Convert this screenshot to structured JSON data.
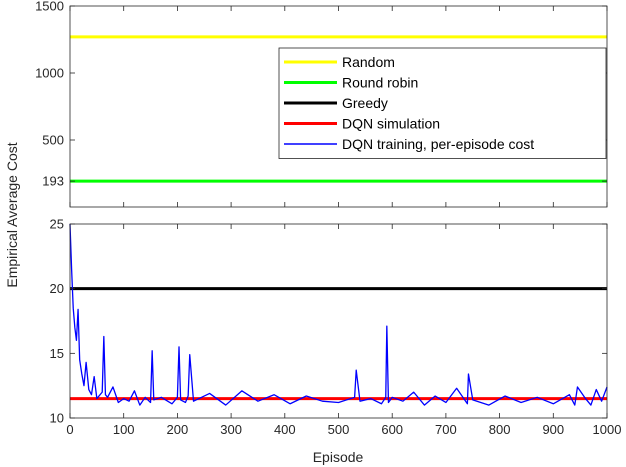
{
  "chart_data": {
    "type": "line",
    "xlabel": "Episode",
    "ylabel": "Empirical Average Cost",
    "shared_x": {
      "range": [
        0,
        1000
      ],
      "ticks": [
        0,
        100,
        200,
        300,
        400,
        500,
        600,
        700,
        800,
        900,
        1000
      ]
    },
    "panels": [
      {
        "id": "top",
        "ylim": [
          0,
          1500
        ],
        "yticks": [
          193,
          500,
          1000,
          1500
        ],
        "grid": false,
        "legend_position": "right",
        "series": [
          {
            "name": "Random",
            "color": "#ffff00",
            "y": 1270
          },
          {
            "name": "Round robin",
            "color": "#00ff00",
            "y": 193
          }
        ]
      },
      {
        "id": "bottom",
        "ylim": [
          10,
          25
        ],
        "yticks": [
          10,
          15,
          20,
          25
        ],
        "grid": false,
        "series": [
          {
            "name": "Greedy",
            "color": "#000000",
            "y": 20
          },
          {
            "name": "DQN simulation",
            "color": "#ff0000",
            "y": 11.5
          },
          {
            "name": "DQN training, per-episode cost",
            "color": "#0000ff",
            "x": [
              0,
              3,
              6,
              9,
              12,
              15,
              18,
              22,
              26,
              30,
              35,
              40,
              45,
              50,
              60,
              63,
              66,
              70,
              80,
              90,
              100,
              110,
              120,
              130,
              140,
              150,
              153,
              156,
              170,
              190,
              200,
              203,
              206,
              215,
              220,
              223,
              230,
              260,
              290,
              320,
              350,
              380,
              410,
              440,
              470,
              500,
              530,
              533,
              540,
              560,
              580,
              588,
              590,
              593,
              600,
              620,
              640,
              660,
              680,
              700,
              720,
              740,
              742,
              750,
              780,
              810,
              840,
              870,
              900,
              930,
              940,
              945,
              960,
              970,
              980,
              990,
              1000
            ],
            "y": [
              25,
              21.5,
              18.5,
              17,
              16,
              18.4,
              14.5,
              13.4,
              12.5,
              14.3,
              12.2,
              11.8,
              13.2,
              11.5,
              12,
              16.3,
              11.8,
              11.6,
              12.4,
              11.2,
              11.5,
              11.3,
              12.1,
              11.0,
              11.6,
              11.2,
              15.2,
              11.4,
              11.6,
              11.1,
              11.6,
              15.5,
              11.4,
              11.2,
              11.7,
              14.9,
              11.3,
              11.9,
              11.0,
              12.1,
              11.3,
              11.8,
              11.1,
              11.7,
              11.3,
              11.2,
              11.6,
              13.7,
              11.3,
              11.5,
              11.1,
              11.6,
              17.1,
              11.2,
              11.6,
              11.3,
              12.0,
              11.0,
              11.7,
              11.2,
              12.3,
              11.1,
              13.4,
              11.4,
              11.0,
              11.7,
              11.2,
              11.6,
              11.1,
              11.8,
              11.0,
              12.4,
              11.5,
              11.0,
              12.2,
              11.3,
              12.4
            ]
          }
        ]
      }
    ],
    "legend": [
      {
        "label": "Random",
        "color": "#ffff00"
      },
      {
        "label": "Round robin",
        "color": "#00ff00"
      },
      {
        "label": "Greedy",
        "color": "#000000"
      },
      {
        "label": "DQN simulation",
        "color": "#ff0000"
      },
      {
        "label": "DQN training, per-episode cost",
        "color": "#0000ff"
      }
    ]
  }
}
